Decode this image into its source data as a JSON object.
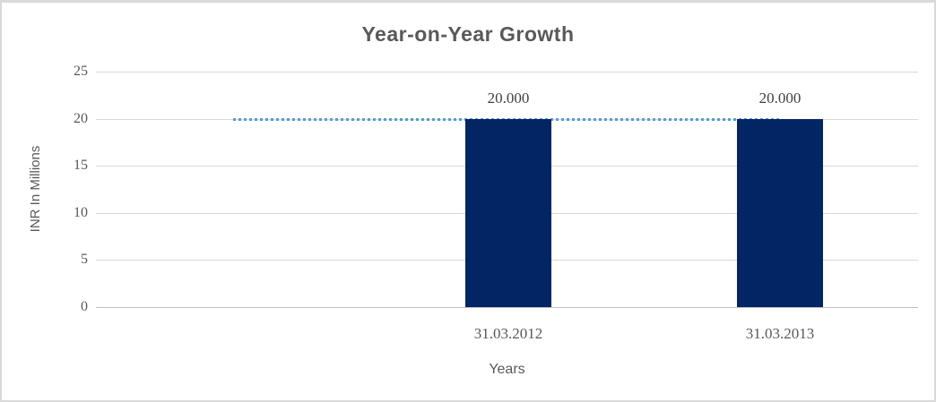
{
  "chart_data": {
    "type": "bar",
    "title": "Year-on-Year Growth",
    "categories": [
      "31.03.2012",
      "31.03.2013"
    ],
    "values": [
      20,
      20
    ],
    "data_labels": [
      "20.000",
      "20.000"
    ],
    "xlabel": "Years",
    "ylabel": "INR In Millions",
    "ylim": [
      0,
      25
    ],
    "yticks": [
      0,
      5,
      10,
      15,
      20,
      25
    ],
    "grid": true,
    "legend": "none",
    "trendline": {
      "style": "dotted",
      "value": 20,
      "color": "#5B9BD5"
    },
    "colors": {
      "bar": "#032564",
      "title_text": "#595959",
      "axis_text": "#595959",
      "data_label_text": "#404040",
      "gridline": "#D9D9D9",
      "baseline": "#BFBFBF",
      "frame_border": "#D9D9D9"
    }
  }
}
